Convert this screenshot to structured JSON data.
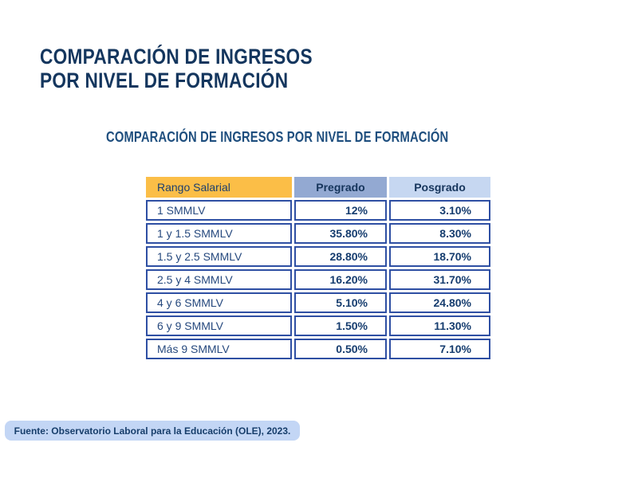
{
  "page": {
    "title_line1": "COMPARACIÓN DE INGRESOS",
    "title_line2": "POR NIVEL DE FORMACIÓN",
    "subtitle": "COMPARACIÓN DE INGRESOS POR NIVEL DE FORMACIÓN"
  },
  "table": {
    "headers": {
      "range": "Rango Salarial",
      "pregrado": "Pregrado",
      "posgrado": "Posgrado"
    },
    "rows": [
      {
        "range": "1 SMMLV",
        "pregrado": "12%",
        "posgrado": "3.10%"
      },
      {
        "range": "1 y 1.5 SMMLV",
        "pregrado": "35.80%",
        "posgrado": "8.30%"
      },
      {
        "range": "1.5 y 2.5 SMMLV",
        "pregrado": "28.80%",
        "posgrado": "18.70%"
      },
      {
        "range": "2.5 y 4 SMMLV",
        "pregrado": "16.20%",
        "posgrado": "31.70%"
      },
      {
        "range": "4 y 6 SMMLV",
        "pregrado": "5.10%",
        "posgrado": "24.80%"
      },
      {
        "range": "6 y 9 SMMLV",
        "pregrado": "1.50%",
        "posgrado": "11.30%"
      },
      {
        "range": "Más 9 SMMLV",
        "pregrado": "0.50%",
        "posgrado": "7.10%"
      }
    ]
  },
  "footer": {
    "source": "Fuente: Observatorio Laboral para la Educación (OLE), 2023."
  },
  "colors": {
    "accent_yellow": "#FBBE47",
    "header_blue_gray": "#93A9D2",
    "header_light_blue": "#C6D7F1",
    "cell_border_blue": "#2E4FA3",
    "title_navy": "#14365E",
    "subtitle_blue": "#1E4E7E",
    "footer_bg": "#C3D6F5",
    "footer_text": "#173E6B"
  }
}
